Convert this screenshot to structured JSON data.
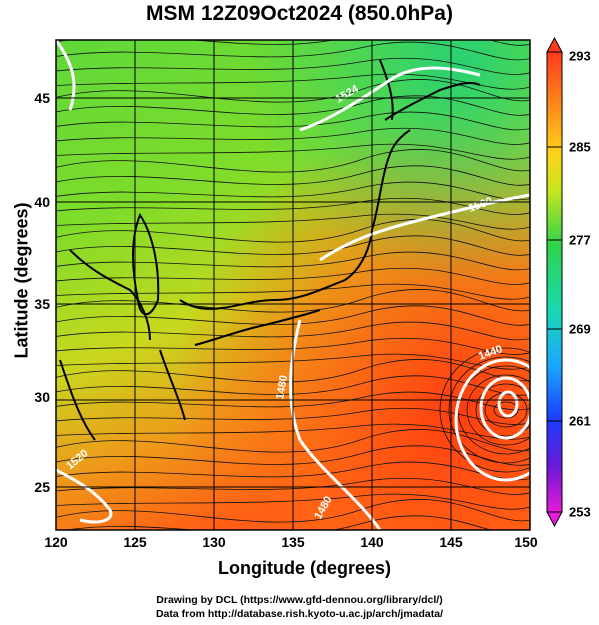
{
  "title": "MSM 12Z09Oct2024 (850.0hPa)",
  "x_axis": {
    "title": "Longitude (degrees)",
    "ticks": [
      "120",
      "125",
      "130",
      "135",
      "140",
      "145",
      "150"
    ]
  },
  "y_axis": {
    "title": "Latitude  (degrees)",
    "ticks": [
      "25",
      "30",
      "35",
      "40",
      "45"
    ]
  },
  "colorbar": {
    "labels": [
      "293",
      "285",
      "277",
      "269",
      "261",
      "253"
    ],
    "colors": [
      "#ff3a1e",
      "#ff8c1a",
      "#ffd21a",
      "#9ee21e",
      "#2ed44a",
      "#19d8b0",
      "#1aa8ff",
      "#1a3cff",
      "#6a1ad8",
      "#e61ad8"
    ]
  },
  "contour_labels": [
    "1524",
    "1500",
    "1480",
    "1480",
    "1440",
    "1520"
  ],
  "credits": [
    "Drawing by DCL (https://www.gfd-dennou.org/library/dcl/)",
    "Data from http://database.rish.kyoto-u.ac.jp/arch/jmadata/"
  ]
}
